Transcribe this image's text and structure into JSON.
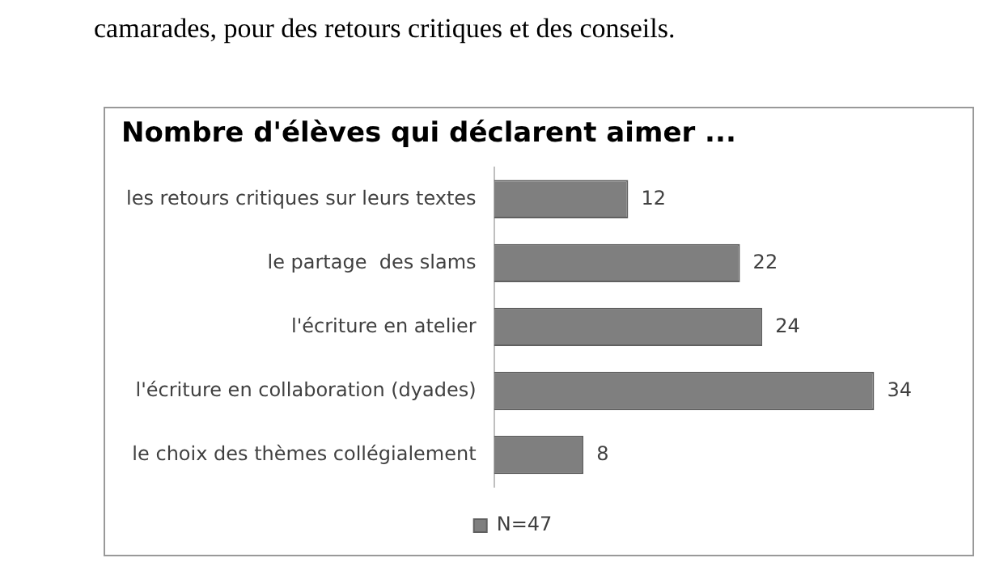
{
  "chart_data": {
    "type": "bar",
    "orientation": "horizontal",
    "title": "Nombre d'élèves qui déclarent aimer ...",
    "annotations": [
      "camarades, pour des retours critiques et des conseils."
    ],
    "categories": [
      "les retours critiques sur leurs textes",
      "le partage  des slams",
      "l'écriture en atelier",
      "l'écriture en collaboration (dyades)",
      "le choix des thèmes collégialement"
    ],
    "series": [
      {
        "name": "N=47",
        "color": "#7f7f7f",
        "values": [
          12,
          22,
          24,
          34,
          8
        ]
      }
    ],
    "data_labels": true,
    "legend": "bottom",
    "grid": false
  }
}
